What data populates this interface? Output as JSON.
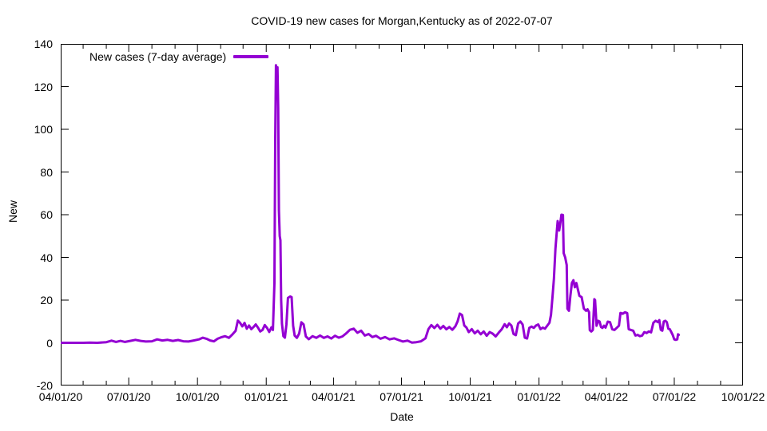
{
  "title": "COVID-19 new cases for Morgan,Kentucky as of 2022-07-07",
  "legend": {
    "label": "New cases (7-day average)"
  },
  "colors": {
    "line": "#9400D3",
    "axis": "#000000",
    "text": "#000000",
    "background": "#ffffff"
  },
  "chart_data": {
    "type": "line",
    "title": "COVID-19 new cases for Morgan,Kentucky as of 2022-07-07",
    "xlabel": "Date",
    "ylabel": "New",
    "x_range": [
      "2020-04-01",
      "2022-10-01"
    ],
    "ylim": [
      -20,
      140
    ],
    "y_ticks": [
      -20,
      0,
      20,
      40,
      60,
      80,
      100,
      120,
      140
    ],
    "x_ticks": [
      {
        "label": "04/01/20",
        "date": "2020-04-01"
      },
      {
        "label": "07/01/20",
        "date": "2020-07-01"
      },
      {
        "label": "10/01/20",
        "date": "2020-10-01"
      },
      {
        "label": "01/01/21",
        "date": "2021-01-01"
      },
      {
        "label": "04/01/21",
        "date": "2021-04-01"
      },
      {
        "label": "07/01/21",
        "date": "2021-07-01"
      },
      {
        "label": "10/01/21",
        "date": "2021-10-01"
      },
      {
        "label": "01/01/22",
        "date": "2022-01-01"
      },
      {
        "label": "04/01/22",
        "date": "2022-04-01"
      },
      {
        "label": "07/01/22",
        "date": "2022-07-01"
      },
      {
        "label": "10/01/22",
        "date": "2022-10-01"
      }
    ],
    "minor_x_ticks": "monthly",
    "grid": false,
    "legend_position": "inside-top-left",
    "series": [
      {
        "name": "New cases (7-day average)",
        "color": "#9400D3",
        "points": [
          [
            "2020-04-01",
            0
          ],
          [
            "2020-04-10",
            0
          ],
          [
            "2020-04-20",
            0
          ],
          [
            "2020-05-01",
            0
          ],
          [
            "2020-05-10",
            0.1
          ],
          [
            "2020-05-20",
            0
          ],
          [
            "2020-06-01",
            0.3
          ],
          [
            "2020-06-08",
            1.0
          ],
          [
            "2020-06-14",
            0.4
          ],
          [
            "2020-06-20",
            0.9
          ],
          [
            "2020-06-26",
            0.4
          ],
          [
            "2020-07-03",
            0.9
          ],
          [
            "2020-07-10",
            1.4
          ],
          [
            "2020-07-17",
            0.9
          ],
          [
            "2020-07-24",
            0.6
          ],
          [
            "2020-08-01",
            0.7
          ],
          [
            "2020-08-08",
            1.6
          ],
          [
            "2020-08-15",
            1.1
          ],
          [
            "2020-08-22",
            1.4
          ],
          [
            "2020-08-29",
            0.9
          ],
          [
            "2020-09-05",
            1.3
          ],
          [
            "2020-09-12",
            0.7
          ],
          [
            "2020-09-19",
            0.6
          ],
          [
            "2020-09-26",
            1.1
          ],
          [
            "2020-10-03",
            1.6
          ],
          [
            "2020-10-08",
            2.4
          ],
          [
            "2020-10-13",
            1.9
          ],
          [
            "2020-10-18",
            1.1
          ],
          [
            "2020-10-23",
            0.7
          ],
          [
            "2020-10-28",
            1.9
          ],
          [
            "2020-11-02",
            2.6
          ],
          [
            "2020-11-07",
            3.1
          ],
          [
            "2020-11-12",
            2.3
          ],
          [
            "2020-11-17",
            4.0
          ],
          [
            "2020-11-21",
            5.6
          ],
          [
            "2020-11-24",
            10.4
          ],
          [
            "2020-11-27",
            9.3
          ],
          [
            "2020-11-30",
            7.7
          ],
          [
            "2020-12-03",
            9.3
          ],
          [
            "2020-12-06",
            6.6
          ],
          [
            "2020-12-09",
            8.1
          ],
          [
            "2020-12-12",
            6.4
          ],
          [
            "2020-12-15",
            7.4
          ],
          [
            "2020-12-18",
            8.6
          ],
          [
            "2020-12-21",
            7.1
          ],
          [
            "2020-12-24",
            5.3
          ],
          [
            "2020-12-27",
            6.0
          ],
          [
            "2020-12-30",
            8.3
          ],
          [
            "2021-01-02",
            7.0
          ],
          [
            "2021-01-05",
            5.1
          ],
          [
            "2021-01-08",
            7.3
          ],
          [
            "2021-01-10",
            6.0
          ],
          [
            "2021-01-12",
            28.0
          ],
          [
            "2021-01-13",
            95.0
          ],
          [
            "2021-01-14",
            130.0
          ],
          [
            "2021-01-15",
            122.0
          ],
          [
            "2021-01-16",
            129.0
          ],
          [
            "2021-01-17",
            110.0
          ],
          [
            "2021-01-18",
            62.0
          ],
          [
            "2021-01-19",
            50.0
          ],
          [
            "2021-01-20",
            48.0
          ],
          [
            "2021-01-21",
            20.0
          ],
          [
            "2021-01-22",
            9.0
          ],
          [
            "2021-01-24",
            3.1
          ],
          [
            "2021-01-26",
            2.4
          ],
          [
            "2021-01-28",
            8.6
          ],
          [
            "2021-01-30",
            21.0
          ],
          [
            "2021-02-02",
            21.7
          ],
          [
            "2021-02-04",
            21.4
          ],
          [
            "2021-02-06",
            8.0
          ],
          [
            "2021-02-08",
            3.4
          ],
          [
            "2021-02-11",
            2.3
          ],
          [
            "2021-02-14",
            4.3
          ],
          [
            "2021-02-17",
            9.6
          ],
          [
            "2021-02-20",
            8.6
          ],
          [
            "2021-02-23",
            3.0
          ],
          [
            "2021-02-27",
            1.7
          ],
          [
            "2021-03-04",
            3.1
          ],
          [
            "2021-03-09",
            2.3
          ],
          [
            "2021-03-14",
            3.4
          ],
          [
            "2021-03-19",
            2.3
          ],
          [
            "2021-03-24",
            3.0
          ],
          [
            "2021-03-29",
            2.0
          ],
          [
            "2021-04-03",
            3.3
          ],
          [
            "2021-04-08",
            2.4
          ],
          [
            "2021-04-13",
            3.0
          ],
          [
            "2021-04-18",
            4.4
          ],
          [
            "2021-04-23",
            6.1
          ],
          [
            "2021-04-28",
            6.6
          ],
          [
            "2021-05-03",
            4.7
          ],
          [
            "2021-05-08",
            5.7
          ],
          [
            "2021-05-13",
            3.4
          ],
          [
            "2021-05-18",
            4.1
          ],
          [
            "2021-05-23",
            2.7
          ],
          [
            "2021-05-28",
            3.3
          ],
          [
            "2021-06-03",
            1.9
          ],
          [
            "2021-06-09",
            2.7
          ],
          [
            "2021-06-15",
            1.6
          ],
          [
            "2021-06-21",
            2.1
          ],
          [
            "2021-06-27",
            1.3
          ],
          [
            "2021-07-03",
            0.6
          ],
          [
            "2021-07-09",
            1.0
          ],
          [
            "2021-07-15",
            0.1
          ],
          [
            "2021-07-21",
            0.3
          ],
          [
            "2021-07-27",
            0.7
          ],
          [
            "2021-08-02",
            2.1
          ],
          [
            "2021-08-06",
            6.4
          ],
          [
            "2021-08-10",
            8.3
          ],
          [
            "2021-08-14",
            6.9
          ],
          [
            "2021-08-18",
            8.4
          ],
          [
            "2021-08-22",
            6.6
          ],
          [
            "2021-08-26",
            7.9
          ],
          [
            "2021-08-30",
            6.3
          ],
          [
            "2021-09-03",
            7.4
          ],
          [
            "2021-09-07",
            6.1
          ],
          [
            "2021-09-11",
            7.7
          ],
          [
            "2021-09-14",
            10.0
          ],
          [
            "2021-09-17",
            13.7
          ],
          [
            "2021-09-20",
            13.0
          ],
          [
            "2021-09-23",
            8.1
          ],
          [
            "2021-09-26",
            7.1
          ],
          [
            "2021-09-29",
            5.0
          ],
          [
            "2021-10-03",
            6.4
          ],
          [
            "2021-10-07",
            4.4
          ],
          [
            "2021-10-11",
            5.7
          ],
          [
            "2021-10-15",
            4.0
          ],
          [
            "2021-10-19",
            5.3
          ],
          [
            "2021-10-23",
            3.3
          ],
          [
            "2021-10-27",
            5.0
          ],
          [
            "2021-10-31",
            4.3
          ],
          [
            "2021-11-04",
            3.0
          ],
          [
            "2021-11-08",
            4.7
          ],
          [
            "2021-11-12",
            6.3
          ],
          [
            "2021-11-16",
            8.7
          ],
          [
            "2021-11-19",
            7.3
          ],
          [
            "2021-11-22",
            9.1
          ],
          [
            "2021-11-25",
            8.1
          ],
          [
            "2021-11-28",
            4.1
          ],
          [
            "2021-12-01",
            3.6
          ],
          [
            "2021-12-04",
            9.0
          ],
          [
            "2021-12-07",
            10.0
          ],
          [
            "2021-12-10",
            8.6
          ],
          [
            "2021-12-13",
            2.4
          ],
          [
            "2021-12-16",
            2.0
          ],
          [
            "2021-12-19",
            7.0
          ],
          [
            "2021-12-22",
            7.6
          ],
          [
            "2021-12-25",
            7.0
          ],
          [
            "2021-12-28",
            8.1
          ],
          [
            "2021-12-31",
            8.6
          ],
          [
            "2022-01-03",
            6.4
          ],
          [
            "2022-01-06",
            7.1
          ],
          [
            "2022-01-09",
            6.6
          ],
          [
            "2022-01-12",
            8.0
          ],
          [
            "2022-01-15",
            9.4
          ],
          [
            "2022-01-17",
            13.0
          ],
          [
            "2022-01-19",
            21.4
          ],
          [
            "2022-01-21",
            30.0
          ],
          [
            "2022-01-23",
            44.0
          ],
          [
            "2022-01-25",
            53.0
          ],
          [
            "2022-01-26",
            57.0
          ],
          [
            "2022-01-28",
            52.6
          ],
          [
            "2022-01-30",
            57.4
          ],
          [
            "2022-01-31",
            60.0
          ],
          [
            "2022-02-02",
            59.9
          ],
          [
            "2022-02-03",
            42.0
          ],
          [
            "2022-02-05",
            40.0
          ],
          [
            "2022-02-07",
            36.4
          ],
          [
            "2022-02-08",
            16.0
          ],
          [
            "2022-02-10",
            15.0
          ],
          [
            "2022-02-12",
            22.0
          ],
          [
            "2022-02-14",
            28.0
          ],
          [
            "2022-02-16",
            29.3
          ],
          [
            "2022-02-18",
            26.0
          ],
          [
            "2022-02-20",
            28.0
          ],
          [
            "2022-02-22",
            25.0
          ],
          [
            "2022-02-24",
            22.0
          ],
          [
            "2022-02-27",
            21.4
          ],
          [
            "2022-03-02",
            16.0
          ],
          [
            "2022-03-05",
            15.0
          ],
          [
            "2022-03-07",
            15.7
          ],
          [
            "2022-03-09",
            14.3
          ],
          [
            "2022-03-10",
            5.9
          ],
          [
            "2022-03-12",
            5.3
          ],
          [
            "2022-03-14",
            6.0
          ],
          [
            "2022-03-16",
            20.4
          ],
          [
            "2022-03-17",
            20.0
          ],
          [
            "2022-03-19",
            8.0
          ],
          [
            "2022-03-21",
            10.3
          ],
          [
            "2022-03-23",
            10.0
          ],
          [
            "2022-03-25",
            7.4
          ],
          [
            "2022-03-27",
            7.0
          ],
          [
            "2022-03-29",
            8.0
          ],
          [
            "2022-03-31",
            7.1
          ],
          [
            "2022-04-03",
            9.9
          ],
          [
            "2022-04-06",
            9.7
          ],
          [
            "2022-04-09",
            6.3
          ],
          [
            "2022-04-12",
            6.0
          ],
          [
            "2022-04-15",
            7.0
          ],
          [
            "2022-04-18",
            8.0
          ],
          [
            "2022-04-20",
            14.0
          ],
          [
            "2022-04-23",
            13.6
          ],
          [
            "2022-04-26",
            14.3
          ],
          [
            "2022-04-29",
            13.9
          ],
          [
            "2022-05-01",
            6.4
          ],
          [
            "2022-05-04",
            6.0
          ],
          [
            "2022-05-07",
            5.7
          ],
          [
            "2022-05-10",
            3.4
          ],
          [
            "2022-05-13",
            3.7
          ],
          [
            "2022-05-16",
            3.1
          ],
          [
            "2022-05-19",
            3.4
          ],
          [
            "2022-05-22",
            5.0
          ],
          [
            "2022-05-25",
            4.6
          ],
          [
            "2022-05-28",
            5.3
          ],
          [
            "2022-05-31",
            4.9
          ],
          [
            "2022-06-03",
            9.4
          ],
          [
            "2022-06-06",
            10.3
          ],
          [
            "2022-06-09",
            9.7
          ],
          [
            "2022-06-11",
            10.6
          ],
          [
            "2022-06-13",
            6.1
          ],
          [
            "2022-06-15",
            5.7
          ],
          [
            "2022-06-17",
            10.0
          ],
          [
            "2022-06-19",
            10.3
          ],
          [
            "2022-06-21",
            9.7
          ],
          [
            "2022-06-23",
            6.6
          ],
          [
            "2022-06-25",
            6.4
          ],
          [
            "2022-06-27",
            5.0
          ],
          [
            "2022-06-29",
            3.6
          ],
          [
            "2022-07-01",
            1.6
          ],
          [
            "2022-07-03",
            1.4
          ],
          [
            "2022-07-05",
            1.6
          ],
          [
            "2022-07-06",
            4.0
          ],
          [
            "2022-07-07",
            3.7
          ]
        ]
      }
    ]
  }
}
